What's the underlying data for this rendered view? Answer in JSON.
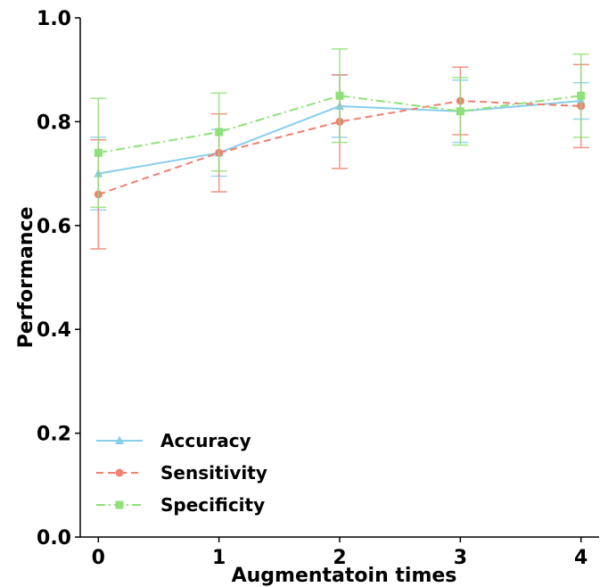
{
  "chart_data": {
    "type": "line",
    "title": "",
    "xlabel": "Augmentatoin times",
    "ylabel": "Performance",
    "x": [
      0,
      1,
      2,
      3,
      4
    ],
    "xticks": [
      "0",
      "1",
      "2",
      "3",
      "4"
    ],
    "xlim": [
      -0.15,
      4.15
    ],
    "ylim": [
      0.0,
      1.0
    ],
    "yticks": [
      "0.0",
      "0.2",
      "0.4",
      "0.6",
      "0.8",
      "1.0"
    ],
    "grid": false,
    "legend_position": "bottom-left",
    "series": [
      {
        "name": "Accuracy",
        "color": "#87ceeb",
        "marker": "triangle",
        "linestyle": "solid",
        "values": [
          0.7,
          0.74,
          0.83,
          0.82,
          0.84
        ],
        "errors": [
          0.07,
          0.045,
          0.06,
          0.06,
          0.035
        ]
      },
      {
        "name": "Sensitivity",
        "color": "#f08070",
        "marker": "circle",
        "linestyle": "dashed",
        "values": [
          0.66,
          0.74,
          0.8,
          0.84,
          0.83
        ],
        "errors": [
          0.105,
          0.075,
          0.09,
          0.065,
          0.08
        ]
      },
      {
        "name": "Specificity",
        "color": "#90e07a",
        "marker": "square",
        "linestyle": "dashdot",
        "values": [
          0.74,
          0.78,
          0.85,
          0.82,
          0.85
        ],
        "errors": [
          0.105,
          0.075,
          0.09,
          0.065,
          0.08
        ]
      }
    ]
  }
}
